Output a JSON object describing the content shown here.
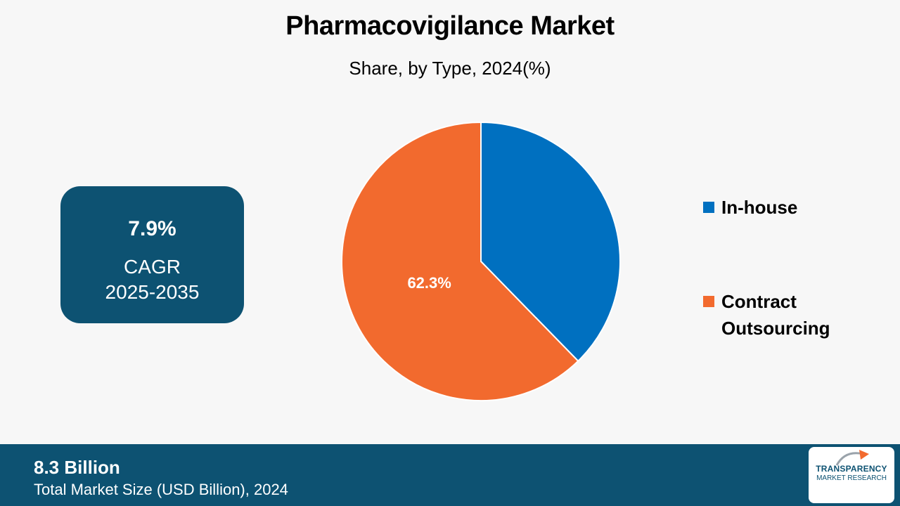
{
  "title": "Pharmacovigilance Market",
  "subtitle": "Share, by Type, 2024(%)",
  "cagr": {
    "value": "7.9%",
    "label_line1": "CAGR",
    "label_line2": "2025-2035"
  },
  "chart_data": {
    "type": "pie",
    "categories": [
      "In-house",
      "Contract Outsourcing"
    ],
    "values": [
      37.7,
      62.3
    ],
    "data_labels": [
      "",
      "62.3%"
    ],
    "colors": [
      "#0070c0",
      "#f26a2e"
    ],
    "legend": [
      "In-house",
      "Contract Outsourcing"
    ],
    "legend_position": "right"
  },
  "legend": [
    {
      "label_line1": "In-house",
      "label_line2": "",
      "color": "#0070c0"
    },
    {
      "label_line1": "Contract",
      "label_line2": "Outsourcing",
      "color": "#f26a2e"
    }
  ],
  "footer": {
    "value": "8.3 Billion",
    "label": "Total Market Size (USD Billion), 2024"
  },
  "logo": {
    "line1": "TRANSPARENCY",
    "line2": "MARKET RESEARCH"
  }
}
